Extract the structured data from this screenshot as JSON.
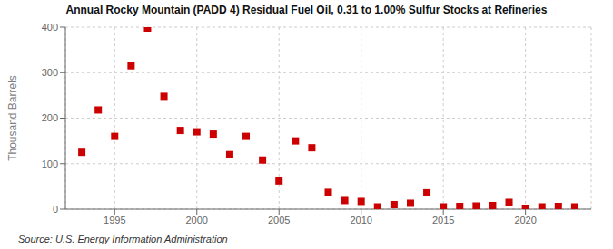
{
  "chart_data": {
    "type": "scatter",
    "title": "Annual Rocky Mountain (PADD 4) Residual Fuel Oil, 0.31 to 1.00% Sulfur Stocks at Refineries",
    "ylabel": "Thousand Barrels",
    "source": "Source: U.S. Energy Information Administration",
    "x": [
      1993,
      1994,
      1995,
      1996,
      1997,
      1998,
      1999,
      2000,
      2001,
      2002,
      2003,
      2004,
      2005,
      2006,
      2007,
      2008,
      2009,
      2010,
      2011,
      2012,
      2013,
      2014,
      2015,
      2016,
      2017,
      2018,
      2019,
      2020,
      2021,
      2022,
      2023
    ],
    "values": [
      125,
      218,
      160,
      315,
      398,
      248,
      173,
      170,
      165,
      120,
      160,
      108,
      62,
      150,
      135,
      37,
      19,
      17,
      5,
      10,
      13,
      36,
      5,
      6,
      7,
      8,
      15,
      2,
      5,
      6,
      5
    ],
    "color": "#cc0000",
    "marker": "square",
    "xlim": [
      1992,
      2024
    ],
    "ylim": [
      0,
      400
    ],
    "xticks": [
      1995,
      2000,
      2005,
      2010,
      2015,
      2020
    ],
    "yticks": [
      0,
      100,
      200,
      300,
      400
    ],
    "grid": true
  }
}
